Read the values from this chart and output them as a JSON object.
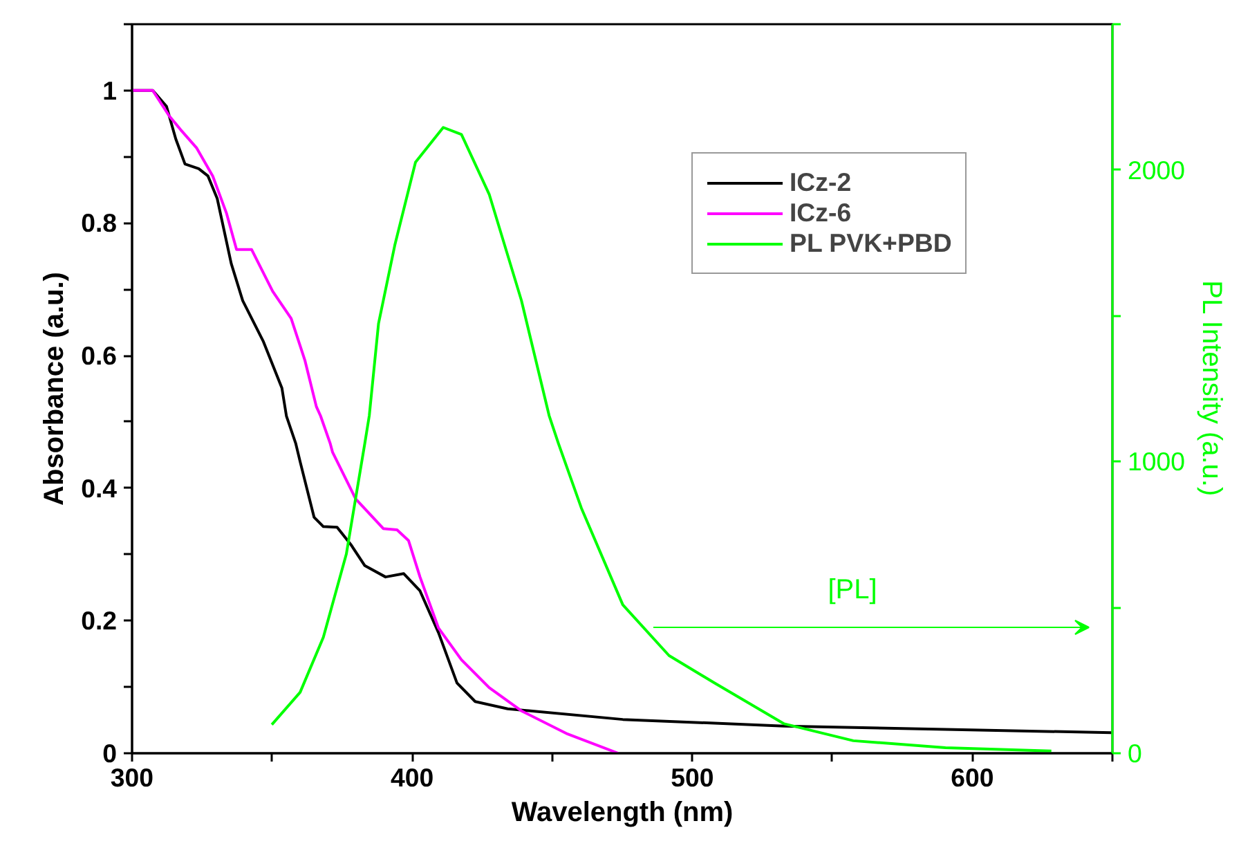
{
  "chart_data": {
    "type": "line",
    "xlabel": "Wavelength (nm)",
    "ylabel": "Absorbance (a.u.)",
    "y2label": "PL Intensity (a.u.)",
    "xlim": [
      300,
      650
    ],
    "xticks": [
      300,
      {
        "value": 350,
        "label": null
      },
      400,
      {
        "value": 450,
        "label": null
      },
      500,
      {
        "value": 550,
        "label": null
      },
      600,
      {
        "value": 650,
        "label": null
      }
    ],
    "ylim": [
      0,
      1.1
    ],
    "yticks": [
      0,
      {
        "value": 0.1,
        "label": null
      },
      0.2,
      {
        "value": 0.3,
        "label": null
      },
      0.4,
      {
        "value": 0.5,
        "label": null
      },
      0.6,
      {
        "value": 0.7,
        "label": null
      },
      0.8,
      {
        "value": 0.9,
        "label": null
      },
      1,
      {
        "value": 1.1,
        "label": null
      }
    ],
    "y2lim": [
      0,
      2500
    ],
    "y2ticks": [
      0,
      {
        "value": 500,
        "label": null
      },
      1000,
      {
        "value": 1500,
        "label": null
      },
      2000,
      {
        "value": 2500,
        "label": null
      }
    ],
    "grid": false,
    "legend": "top right",
    "marker": "none",
    "line_style": "solid",
    "annotations": [
      "[PL]"
    ],
    "series": [
      {
        "name": "ICz-2",
        "color": "#000000",
        "x": [
          300,
          307.4,
          312.3,
          315.6,
          318.9,
          323.8,
          327.1,
          330.4,
          335.4,
          339.5,
          346.9,
          353.5,
          355.1,
          358.4,
          360,
          365,
          368.3,
          373.2,
          378.1,
          383.1,
          390.5,
          397,
          402.8,
          409.4,
          416,
          422.5,
          434.1,
          475.2,
          532.8,
          649.6
        ],
        "values": [
          1.0,
          1.0,
          0.976,
          0.927,
          0.889,
          0.882,
          0.871,
          0.837,
          0.739,
          0.683,
          0.621,
          0.551,
          0.509,
          0.468,
          0.44,
          0.356,
          0.342,
          0.341,
          0.315,
          0.283,
          0.266,
          0.271,
          0.245,
          0.182,
          0.106,
          0.078,
          0.067,
          0.051,
          0.041,
          0.031
        ]
      },
      {
        "name": "ICz-6",
        "color": "#ff00ff",
        "x": [
          300,
          307.4,
          313.2,
          317.3,
          323.1,
          328.8,
          333.7,
          337.3,
          342.7,
          350.2,
          356.8,
          361.7,
          365.8,
          367.3,
          370.7,
          371.6,
          379.8,
          389.7,
          394.6,
          398.7,
          402.8,
          409.4,
          417.6,
          427.5,
          439,
          455.5,
          473.6
        ],
        "values": [
          1.0,
          1.0,
          0.962,
          0.941,
          0.913,
          0.871,
          0.815,
          0.76,
          0.76,
          0.697,
          0.656,
          0.593,
          0.523,
          0.509,
          0.468,
          0.454,
          0.384,
          0.339,
          0.337,
          0.321,
          0.266,
          0.189,
          0.141,
          0.099,
          0.064,
          0.029,
          0.0
        ]
      },
      {
        "name": "PL PVK+PBD",
        "color": "#00ff00",
        "axis": "y2",
        "x": [
          349.9,
          360,
          368.3,
          376.5,
          383.1,
          384.7,
          388,
          393.8,
          401.2,
          411.1,
          417.6,
          427.5,
          439,
          448.9,
          452.2,
          460.4,
          475.2,
          491.7,
          508.1,
          532.8,
          557.5,
          590.4,
          628.2
        ],
        "values": [
          98,
          209,
          398,
          683,
          1063,
          1158,
          1474,
          1742,
          2027,
          2146,
          2122,
          1917,
          1553,
          1158,
          1063,
          841,
          509,
          335,
          240,
          101,
          43,
          19,
          8
        ]
      }
    ]
  }
}
